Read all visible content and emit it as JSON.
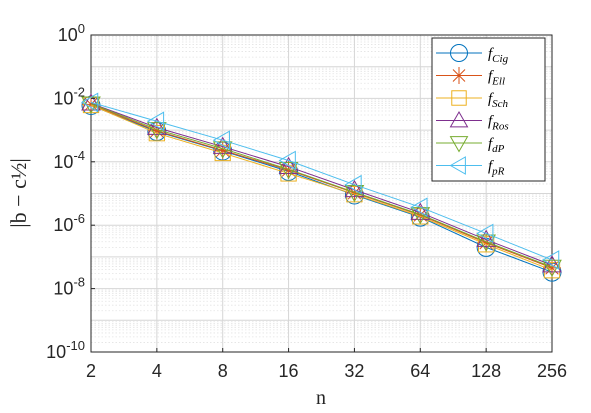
{
  "chart_data": {
    "type": "line",
    "xscale": "log2",
    "yscale": "log10",
    "x": [
      2,
      4,
      8,
      16,
      32,
      64,
      128,
      256
    ],
    "xticklabels": [
      "2",
      "4",
      "8",
      "16",
      "32",
      "64",
      "128",
      "256"
    ],
    "yticks": [
      {
        "value": 1,
        "base": "10",
        "exp": "0"
      },
      {
        "value": 0.01,
        "base": "10",
        "exp": "-2"
      },
      {
        "value": 0.0001,
        "base": "10",
        "exp": "-4"
      },
      {
        "value": 1e-06,
        "base": "10",
        "exp": "-6"
      },
      {
        "value": 1e-08,
        "base": "10",
        "exp": "-8"
      },
      {
        "value": 1e-10,
        "base": "10",
        "exp": "-10"
      }
    ],
    "xlim": [
      2,
      256
    ],
    "ylim": [
      1e-10,
      1
    ],
    "xlabel": "n",
    "ylabel": "|b − c½|",
    "grid": true,
    "legend_position": "top-right",
    "series": [
      {
        "name": "f",
        "sub": "Cig",
        "color": "#0072BD",
        "marker": "circle",
        "values": [
          0.006,
          0.0009,
          0.00022,
          5e-05,
          9e-06,
          1.8e-06,
          2e-07,
          3.3e-08
        ]
      },
      {
        "name": "f",
        "sub": "Ell",
        "color": "#D95319",
        "marker": "asterisk",
        "values": [
          0.0065,
          0.00095,
          0.00023,
          5.5e-05,
          1.05e-05,
          2.1e-06,
          2.8e-07,
          4.5e-08
        ]
      },
      {
        "name": "f",
        "sub": "Sch",
        "color": "#EDB120",
        "marker": "square",
        "values": [
          0.0062,
          0.0008,
          0.00019,
          4.3e-05,
          9.5e-06,
          1.9e-06,
          2.5e-07,
          3.8e-08
        ]
      },
      {
        "name": "f",
        "sub": "Ros",
        "color": "#7E2F8E",
        "marker": "triangle-up",
        "values": [
          0.007,
          0.0012,
          0.0003,
          7e-05,
          1.3e-05,
          2.5e-06,
          3.5e-07,
          5.5e-08
        ]
      },
      {
        "name": "f",
        "sub": "dP",
        "color": "#77AC30",
        "marker": "triangle-down",
        "values": [
          0.0068,
          0.00105,
          0.00026,
          5.8e-05,
          1.1e-05,
          2.2e-06,
          3e-07,
          4.8e-08
        ]
      },
      {
        "name": "f",
        "sub": "pR",
        "color": "#4DBEEE",
        "marker": "triangle-left",
        "values": [
          0.0075,
          0.0019,
          0.00048,
          0.00011,
          1.9e-05,
          3.7e-06,
          5.5e-07,
          8e-08
        ]
      }
    ]
  }
}
